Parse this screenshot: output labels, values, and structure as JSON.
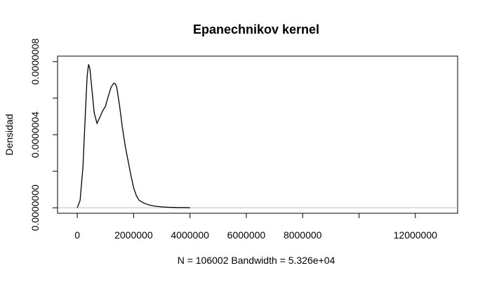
{
  "chart_data": {
    "type": "line",
    "title": "Epanechnikov kernel",
    "xlabel": "N = 106002   Bandwidth = 5.326e+04",
    "ylabel": "Densidad",
    "xlim": [
      -700000,
      13500000
    ],
    "ylim": [
      -3e-08,
      8.3e-07
    ],
    "x_ticks": [
      0,
      2000000,
      4000000,
      6000000,
      8000000,
      10000000,
      12000000
    ],
    "x_tick_labels": [
      "0",
      "2000000",
      "4000000",
      "6000000",
      "8000000",
      "",
      "12000000"
    ],
    "y_ticks": [
      0,
      2e-07,
      4e-07,
      6e-07,
      8e-07
    ],
    "y_tick_labels": [
      "0.0000000",
      "",
      "0.0000004",
      "",
      "0.0000008"
    ],
    "reference_line_y": 0,
    "series": [
      {
        "x": [
          0,
          100000,
          200000,
          300000,
          350000,
          400000,
          450000,
          500000,
          600000,
          700000,
          800000,
          900000,
          1000000,
          1100000,
          1200000,
          1300000,
          1350000,
          1400000,
          1500000,
          1600000,
          1700000,
          1800000,
          1900000,
          2000000,
          2100000,
          2200000,
          2400000,
          2600000,
          2800000,
          3000000,
          3200000,
          3400000,
          3600000,
          3800000,
          4000000
        ],
        "y": [
          0.0,
          4e-08,
          2.2e-07,
          5.6e-07,
          7.2e-07,
          7.85e-07,
          7.6e-07,
          6.8e-07,
          5.2e-07,
          4.62e-07,
          4.95e-07,
          5.3e-07,
          5.55e-07,
          6.1e-07,
          6.6e-07,
          6.82e-07,
          6.78e-07,
          6.6e-07,
          5.6e-07,
          4.4e-07,
          3.4e-07,
          2.6e-07,
          1.8e-07,
          1.1e-07,
          6.5e-08,
          4e-08,
          2.3e-08,
          1.3e-08,
          8e-09,
          5e-09,
          3e-09,
          2e-09,
          1e-09,
          1e-09,
          0.0
        ]
      }
    ]
  }
}
